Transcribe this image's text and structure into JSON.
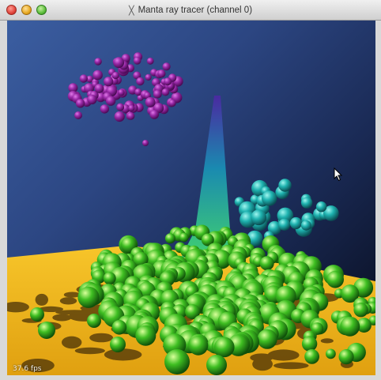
{
  "window": {
    "title": "Manta ray tracer (channel 0)",
    "title_icon": "x11-icon",
    "buttons": {
      "close": "close-button",
      "minimize": "minimize-button",
      "zoom": "zoom-button"
    }
  },
  "viewport": {
    "fps_label": "37.6 fps"
  },
  "colors": {
    "sky_top": "#3b5ea1",
    "sky_bottom": "#060a18",
    "floor": "#f2b81a",
    "spike": "#35c06b",
    "spheres_purple": "#9a2aa8",
    "spheres_cyan": "#1fb3b0",
    "spheres_green": "#3fbf22"
  }
}
